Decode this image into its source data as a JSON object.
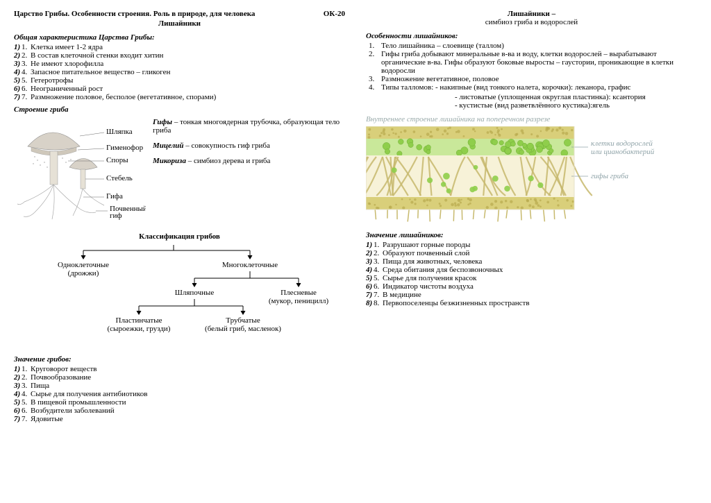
{
  "left": {
    "header_main": "Царство Грибы. Особенности строения. Роль в природе, для человека",
    "header_code": "ОК-20",
    "header_sub": "Лишайники",
    "char_title": "Общая характеристика Царства Грибы:",
    "char_items": [
      "Клетка имеет 1-2 ядра",
      "В состав клеточной стенки входит хитин",
      "Не имеют хлорофилла",
      "Запасное питательное вещество – гликоген",
      "Гетеротрофы",
      "Неограниченный рост",
      "Размножение половое, бесполое (вегетативное,  спорами)"
    ],
    "struct_title": "Строение гриба",
    "mushroom_labels": {
      "shlyapka": "Шляпка",
      "gimenofor": "Гименофор",
      "spory": "Споры",
      "stebel": "Стебель",
      "gifa": "Гифа",
      "pochv": "Почвенный\nгиф"
    },
    "defs": {
      "gify_t": "Гифы",
      "gify_d": " – тонкая многоядерная трубочка, образующая тело гриба",
      "mits_t": "Мицелий",
      "mits_d": " – совокупность гиф гриба",
      "mik_t": "Микориза",
      "mik_d": " – симбиоз дерева и гриба"
    },
    "class_title": "Классификация грибов",
    "tree": {
      "l1a": "Одноклеточные",
      "l1a_sub": "(дрожжи)",
      "l1b": "Многоклеточные",
      "l2a": "Шляпочные",
      "l2b": "Плесневые",
      "l2b_sub": "(мукор, пеницилл)",
      "l3a": "Пластинчатые",
      "l3a_sub": "(сыроежки, грузди)",
      "l3b": "Трубчатые",
      "l3b_sub": "(белый гриб, масленок)"
    },
    "mean_title": "Значение грибов:",
    "mean_items": [
      "Круговорот веществ",
      "Почвообразование",
      "Пища",
      "Сырье для получения антибиотиков",
      "В пищевой промышленности",
      "Возбудители заболеваний",
      "Ядовитые"
    ]
  },
  "right": {
    "header_main": "Лишайники –",
    "header_sub": "симбиоз гриба и водорослей",
    "feat_title": "Особенности лишайников:",
    "feat_items": [
      "Тело лишайника – слоевище (таллом)",
      "Гифы гриба добывают минеральные в-ва и воду, клетки водорослей – вырабатывают органические в-ва. Гифы образуют боковые выросты – гаустории, проникающие в клетки водоросли",
      "Размножение вегетативное, половое",
      "Типы талломов: - накипные (вид тонкого налета, корочки): леканора, графис"
    ],
    "feat_sub1": "- листоватые (уплощенная округлая пластинка): ксантория",
    "feat_sub2": "- кустистые (вид разветвлённого кустика):ягель",
    "lichen_caption": "Внутреннее строение лишайника на поперечном разрезе",
    "lichen_labels": {
      "algae": "клетки водорослей\nили цианобактерий",
      "hyphae": "гифы гриба"
    },
    "colors": {
      "cortex": "#d9cf7a",
      "cortex_dot": "#b8a94f",
      "algae": "#8fce4b",
      "algae_light": "#c9e89a",
      "hypha": "#e8dca0",
      "hypha_line": "#c7b96d",
      "label": "#8fa3a8"
    },
    "mean_title": "Значение лишайников:",
    "mean_items": [
      "Разрушают горные породы",
      "Образуют почвенный слой",
      "Пища для животных, человека",
      "Среда обитания для беспозвоночных",
      "Сырье для получения красок",
      "Индикатор чистоты воздуха",
      "В медицине",
      "Первопоселенцы безжизненных пространств"
    ]
  }
}
